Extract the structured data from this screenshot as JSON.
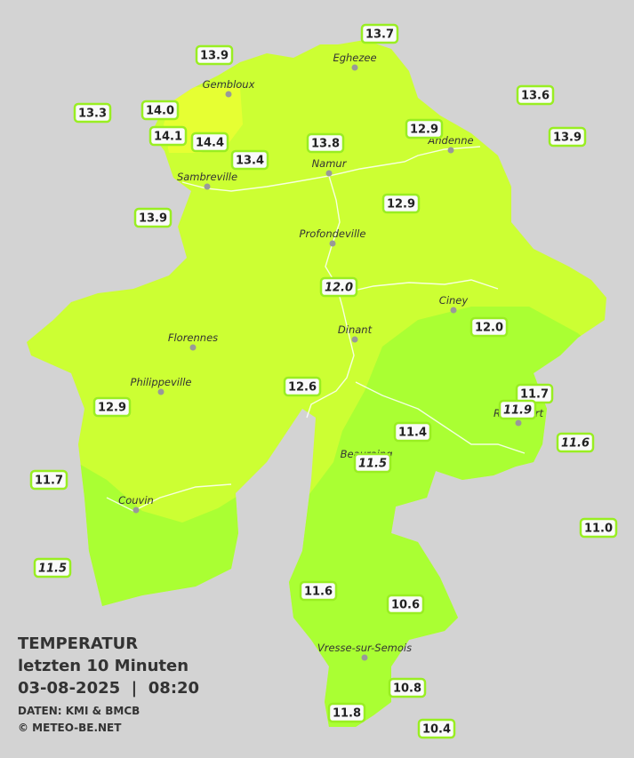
{
  "map": {
    "legend": {
      "title": "TEMPERATUR",
      "period": "letzten 10 Minuten",
      "datetime": "03-08-2025  |  08:20",
      "source": "DATEN: KMI & BMCB",
      "copyright": "© METEO-BE.NET"
    },
    "places": [
      "Eghezee",
      "Gembloux",
      "Andenne",
      "Namur",
      "Sambreville",
      "Profondeville",
      "Ciney",
      "Dinant",
      "Florennes",
      "Philippeville",
      "Rochefort",
      "Beauraing",
      "Couvin",
      "Vresse-sur-Semois"
    ],
    "stations": [
      {
        "temperature": "13.7"
      },
      {
        "temperature": "13.9"
      },
      {
        "temperature": "13.6"
      },
      {
        "temperature": "13.3"
      },
      {
        "temperature": "14.0"
      },
      {
        "temperature": "12.9"
      },
      {
        "temperature": "13.9"
      },
      {
        "temperature": "14.1"
      },
      {
        "temperature": "14.4"
      },
      {
        "temperature": "13.8"
      },
      {
        "temperature": "13.4"
      },
      {
        "temperature": "12.9"
      },
      {
        "temperature": "13.9"
      },
      {
        "temperature": "12.0",
        "italic": true
      },
      {
        "temperature": "12.0"
      },
      {
        "temperature": "12.6"
      },
      {
        "temperature": "11.7"
      },
      {
        "temperature": "12.9"
      },
      {
        "temperature": "11.9",
        "italic": true
      },
      {
        "temperature": "11.4"
      },
      {
        "temperature": "11.6",
        "italic": true
      },
      {
        "temperature": "11.5",
        "italic": true
      },
      {
        "temperature": "11.7"
      },
      {
        "temperature": "11.0"
      },
      {
        "temperature": "11.5",
        "italic": true
      },
      {
        "temperature": "11.6"
      },
      {
        "temperature": "10.6"
      },
      {
        "temperature": "10.8"
      },
      {
        "temperature": "11.8"
      },
      {
        "temperature": "10.4"
      }
    ]
  }
}
